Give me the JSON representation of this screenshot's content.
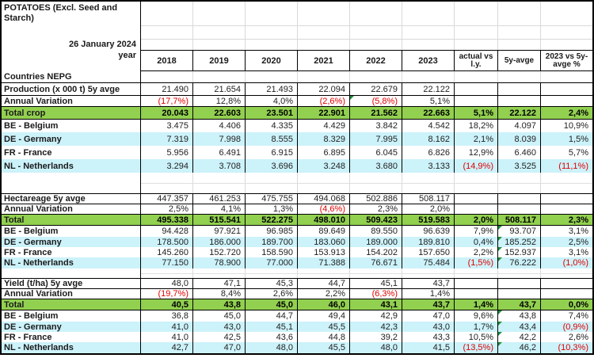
{
  "title": "POTATOES (Excl. Seed and Starch)",
  "date": "26 January 2024",
  "year_label": "year",
  "group_label": "Countries NEPG",
  "columns": [
    "2018",
    "2019",
    "2020",
    "2021",
    "2022",
    "2023",
    "actual vs l.y.",
    "5y-avge",
    "2023 vs 5y-avge %"
  ],
  "colors": {
    "total_row_green": "#92D050",
    "alt_row_cyan": "#CCF2FA",
    "negative_red": "#E00000",
    "error_flag_green": "#1F8A3B"
  },
  "sections": [
    {
      "rows": [
        {
          "label": "Production (x 000 t) 5y avge",
          "type": "header",
          "values": [
            "21.490",
            "21.654",
            "21.493",
            "22.094",
            "22.679",
            "22.122",
            "",
            "",
            ""
          ]
        },
        {
          "label": "Annual Variation",
          "type": "variation",
          "values": [
            "(17,7%)",
            "12,8%",
            "4,0%",
            "(2,6%)",
            "(5,8%)",
            "5,1%",
            "",
            "",
            ""
          ],
          "flags": [
            4
          ]
        },
        {
          "label": "Total crop",
          "type": "total",
          "values": [
            "20.043",
            "22.603",
            "23.501",
            "22.901",
            "21.562",
            "22.663",
            "5,1%",
            "22.122",
            "2,4%"
          ]
        },
        {
          "label": "BE - Belgium",
          "type": "country-white",
          "values": [
            "3.475",
            "4.406",
            "4.335",
            "4.429",
            "3.842",
            "4.542",
            "18,2%",
            "4.097",
            "10,9%"
          ]
        },
        {
          "label": "DE - Germany",
          "type": "country-cyan",
          "values": [
            "7.319",
            "7.998",
            "8.555",
            "8.329",
            "7.995",
            "8.162",
            "2,1%",
            "8.039",
            "1,5%"
          ]
        },
        {
          "label": "FR - France",
          "type": "country-white",
          "values": [
            "5.956",
            "6.491",
            "6.915",
            "6.895",
            "6.045",
            "6.826",
            "12,9%",
            "6.460",
            "5,7%"
          ]
        },
        {
          "label": "NL - Netherlands",
          "type": "country-cyan",
          "values": [
            "3.294",
            "3.708",
            "3.696",
            "3.248",
            "3.680",
            "3.133",
            "(14,9%)",
            "3.525",
            "(11,1%)"
          ]
        }
      ]
    },
    {
      "rows": [
        {
          "label": "Hectareage 5y avge",
          "type": "header",
          "values": [
            "447.357",
            "461.253",
            "475.755",
            "494.068",
            "502.886",
            "508.117",
            "",
            "",
            ""
          ]
        },
        {
          "label": "Annual Variation",
          "type": "variation",
          "values": [
            "2,5%",
            "4,1%",
            "1,3%",
            "(4,6%)",
            "2,3%",
            "2,0%",
            "",
            "",
            ""
          ]
        },
        {
          "label": "Total",
          "type": "total",
          "values": [
            "495.338",
            "515.541",
            "522.275",
            "498.010",
            "509.423",
            "519.583",
            "2,0%",
            "508.117",
            "2,3%"
          ]
        },
        {
          "label": "BE - Belgium",
          "type": "country-white",
          "values": [
            "94.428",
            "97.921",
            "96.985",
            "89.649",
            "89.550",
            "96.639",
            "7,9%",
            "93.707",
            "3,1%"
          ],
          "flags": [
            7
          ]
        },
        {
          "label": "DE - Germany",
          "type": "country-cyan",
          "values": [
            "178.500",
            "186.000",
            "189.700",
            "183.060",
            "189.000",
            "189.810",
            "0,4%",
            "185.252",
            "2,5%"
          ],
          "flags": [
            7
          ]
        },
        {
          "label": "FR - France",
          "type": "country-white",
          "values": [
            "145.260",
            "152.720",
            "158.590",
            "153.913",
            "154.202",
            "157.650",
            "2,2%",
            "152.937",
            "3,1%"
          ],
          "flags": [
            7
          ]
        },
        {
          "label": "NL - Netherlands",
          "type": "country-cyan",
          "values": [
            "77.150",
            "78.900",
            "77.000",
            "71.388",
            "76.671",
            "75.484",
            "(1,5%)",
            "76.222",
            "(1,0%)"
          ],
          "flags": [
            7
          ]
        }
      ]
    },
    {
      "rows": [
        {
          "label": "Yield (t/ha) 5y avge",
          "type": "header",
          "values": [
            "48,0",
            "47,1",
            "45,3",
            "44,7",
            "45,1",
            "43,7",
            "",
            "",
            ""
          ]
        },
        {
          "label": "Annual Variation",
          "type": "variation",
          "values": [
            "(19,7%)",
            "8,4%",
            "2,6%",
            "2,2%",
            "(6,3%)",
            "1,4%",
            "",
            "",
            ""
          ]
        },
        {
          "label": "Total",
          "type": "total",
          "values": [
            "40,5",
            "43,8",
            "45,0",
            "46,0",
            "43,1",
            "43,7",
            "1,4%",
            "43,7",
            "0,0%"
          ]
        },
        {
          "label": "BE - Belgium",
          "type": "country-white",
          "values": [
            "36,8",
            "45,0",
            "44,7",
            "49,4",
            "42,9",
            "47,0",
            "9,6%",
            "43,8",
            "7,4%"
          ],
          "flags": [
            7
          ]
        },
        {
          "label": "DE - Germany",
          "type": "country-cyan",
          "values": [
            "41,0",
            "43,0",
            "45,1",
            "45,5",
            "42,3",
            "43,0",
            "1,7%",
            "43,4",
            "(0,9%)"
          ],
          "flags": [
            7
          ]
        },
        {
          "label": "FR - France",
          "type": "country-white",
          "values": [
            "41,0",
            "42,5",
            "43,6",
            "44,8",
            "39,2",
            "43,3",
            "10,5%",
            "42,2",
            "2,6%"
          ],
          "flags": [
            7
          ]
        },
        {
          "label": "NL - Netherlands",
          "type": "country-cyan",
          "values": [
            "42,7",
            "47,0",
            "48,0",
            "45,5",
            "48,0",
            "41,5",
            "(13,5%)",
            "46,2",
            "(10,3%)"
          ],
          "flags": [
            7
          ]
        }
      ]
    }
  ]
}
